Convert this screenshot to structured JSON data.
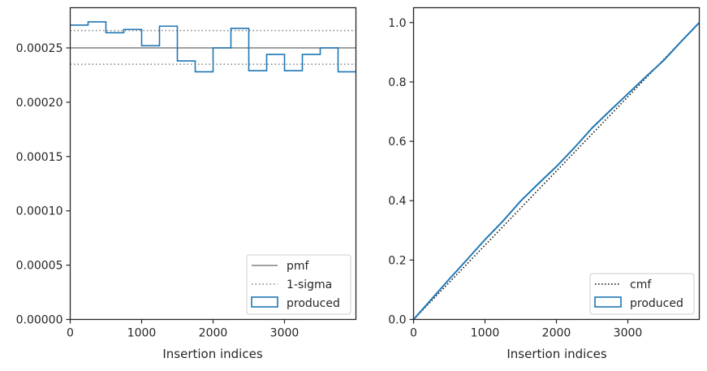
{
  "chart_data": [
    {
      "type": "histogram",
      "xlabel": "Insertion indices",
      "ylabel": "",
      "xlim": [
        0,
        4000
      ],
      "ylim": [
        0,
        0.000287
      ],
      "x_ticks": [
        {
          "value": 0,
          "label": "0"
        },
        {
          "value": 1000,
          "label": "1000"
        },
        {
          "value": 2000,
          "label": "2000"
        },
        {
          "value": 3000,
          "label": "3000"
        }
      ],
      "y_ticks": [
        {
          "value": 0,
          "label": "0.00000"
        },
        {
          "value": 5e-05,
          "label": "0.00005"
        },
        {
          "value": 0.0001,
          "label": "0.00010"
        },
        {
          "value": 0.00015,
          "label": "0.00015"
        },
        {
          "value": 0.0002,
          "label": "0.00020"
        },
        {
          "value": 0.00025,
          "label": "0.00025"
        }
      ],
      "bin_edges": [
        0,
        250,
        500,
        750,
        1000,
        1250,
        1500,
        1750,
        2000,
        2250,
        2500,
        2750,
        3000,
        3250,
        3500,
        3750,
        4000
      ],
      "values": [
        0.000271,
        0.000274,
        0.000264,
        0.000267,
        0.000252,
        0.00027,
        0.000238,
        0.000228,
        0.00025,
        0.000268,
        0.000229,
        0.000244,
        0.000229,
        0.000244,
        0.00025,
        0.000228
      ],
      "pmf": 0.00025,
      "sigma_lines": [
        0.000266,
        0.000235
      ],
      "legend": {
        "position": "lower-right",
        "entries": [
          {
            "label": "pmf",
            "style": "solid-gray"
          },
          {
            "label": "1-sigma",
            "style": "dotted-gray"
          },
          {
            "label": "produced",
            "style": "box-blue"
          }
        ]
      },
      "colors": {
        "produced": "#1f77b4",
        "pmf": "#808080",
        "sigma": "#808080"
      }
    },
    {
      "type": "line",
      "xlabel": "Insertion indices",
      "ylabel": "",
      "xlim": [
        0,
        4000
      ],
      "ylim": [
        0,
        1.05
      ],
      "x_ticks": [
        {
          "value": 0,
          "label": "0"
        },
        {
          "value": 1000,
          "label": "1000"
        },
        {
          "value": 2000,
          "label": "2000"
        },
        {
          "value": 3000,
          "label": "3000"
        }
      ],
      "y_ticks": [
        {
          "value": 0,
          "label": "0.0"
        },
        {
          "value": 0.2,
          "label": "0.2"
        },
        {
          "value": 0.4,
          "label": "0.4"
        },
        {
          "value": 0.6,
          "label": "0.6"
        },
        {
          "value": 0.8,
          "label": "0.8"
        },
        {
          "value": 1.0,
          "label": "1.0"
        }
      ],
      "cmf": {
        "x": [
          0,
          4000
        ],
        "y": [
          0,
          1
        ]
      },
      "produced": {
        "x": [
          0,
          250,
          500,
          750,
          1000,
          1250,
          1500,
          1750,
          2000,
          2250,
          2500,
          2750,
          3000,
          3250,
          3500,
          3750,
          4000
        ],
        "y": [
          0,
          0.068,
          0.136,
          0.202,
          0.269,
          0.331,
          0.399,
          0.458,
          0.515,
          0.578,
          0.645,
          0.703,
          0.76,
          0.817,
          0.872,
          0.937,
          1.0
        ]
      },
      "legend": {
        "position": "lower-right",
        "entries": [
          {
            "label": "cmf",
            "style": "dotted-black"
          },
          {
            "label": "produced",
            "style": "box-blue"
          }
        ]
      },
      "colors": {
        "produced": "#1f77b4",
        "cmf": "#000000"
      }
    }
  ]
}
